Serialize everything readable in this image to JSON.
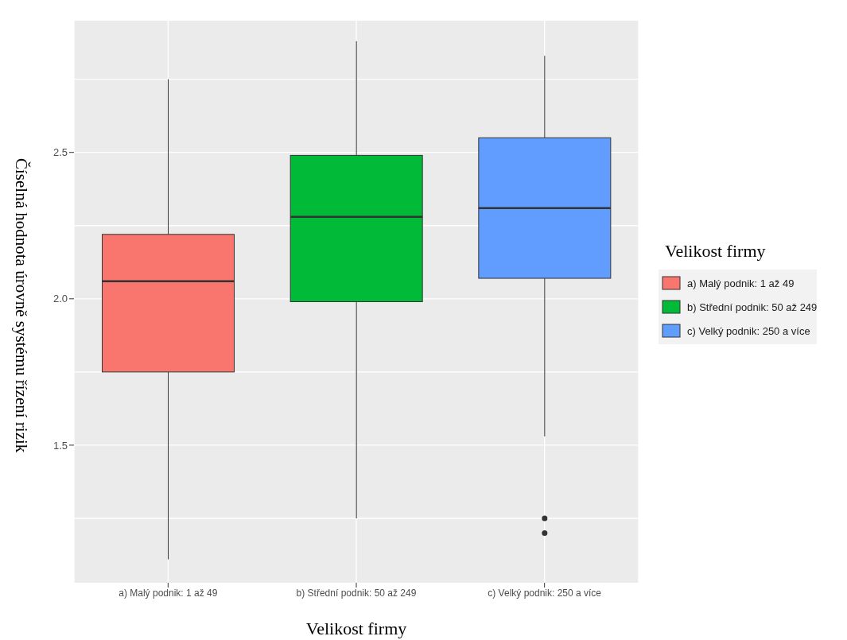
{
  "chart_data": {
    "type": "box",
    "xlabel": "Velikost firmy",
    "ylabel": "Číselná hodnota úrovně systému řízení rizik",
    "legend_title": "Velikost firmy",
    "legend": "right",
    "grid": true,
    "categories": [
      "a) Malý podnik: 1 až 49",
      "b) Střední podnik: 50 až 249",
      "c) Velký podnik: 250 a více"
    ],
    "series": [
      {
        "name": "a) Malý podnik: 1 až 49",
        "color": "#f8766d",
        "boxes": [
          {
            "low": 1.11,
            "q1": 1.75,
            "median": 2.06,
            "q3": 2.22,
            "high": 2.75
          },
          null,
          null
        ]
      },
      {
        "name": "b) Střední podnik: 50 až 249",
        "color": "#00ba38",
        "boxes": [
          null,
          {
            "low": 1.25,
            "q1": 1.99,
            "median": 2.28,
            "q3": 2.49,
            "high": 2.88
          },
          null
        ]
      },
      {
        "name": "c) Velký podnik: 250 a více",
        "color": "#619cff",
        "boxes": [
          null,
          null,
          {
            "low": 1.53,
            "q1": 2.07,
            "median": 2.31,
            "q3": 2.55,
            "high": 2.83,
            "outliers": [
              1.25,
              1.2
            ]
          }
        ]
      }
    ],
    "ylim": [
      1.03,
      2.95
    ],
    "yticks": [
      {
        "value": 1.5,
        "label": "1.5"
      },
      {
        "value": 2,
        "label": "2.0"
      },
      {
        "value": 2.5,
        "label": "2.5"
      }
    ]
  }
}
